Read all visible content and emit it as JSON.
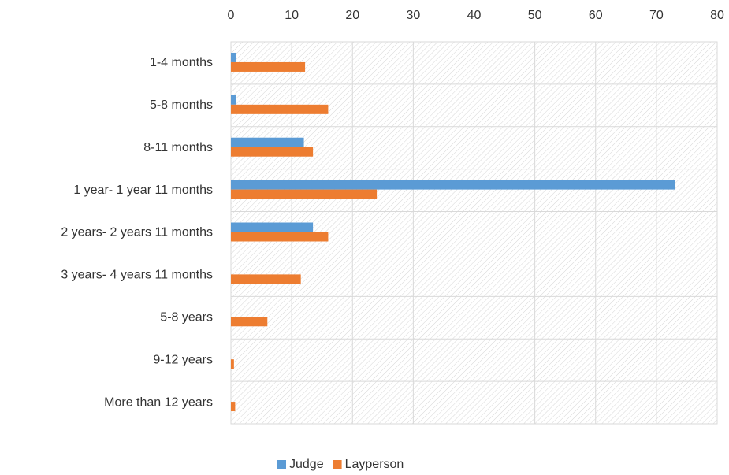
{
  "chart_data": {
    "type": "hbar",
    "categories": [
      "1-4 months",
      "5-8 months",
      "8-11 months",
      "1 year- 1 year 11 months",
      "2 years- 2 years 11 months",
      "3 years- 4 years 11 months",
      "5-8 years",
      "9-12 years",
      "More than 12 years"
    ],
    "series": [
      {
        "name": "Judge",
        "color": "#5b9bd5",
        "values": [
          0.8,
          0.8,
          12,
          73,
          13.5,
          0,
          0,
          0,
          0
        ]
      },
      {
        "name": "Layperson",
        "color": "#ed7d31",
        "values": [
          12.2,
          16,
          13.5,
          24,
          16,
          11.5,
          6,
          0.5,
          0.7
        ]
      }
    ],
    "xlim": [
      0,
      80
    ],
    "xticks": [
      0,
      10,
      20,
      30,
      40,
      50,
      60,
      70,
      80
    ],
    "grid": true,
    "legend": "bottom"
  }
}
